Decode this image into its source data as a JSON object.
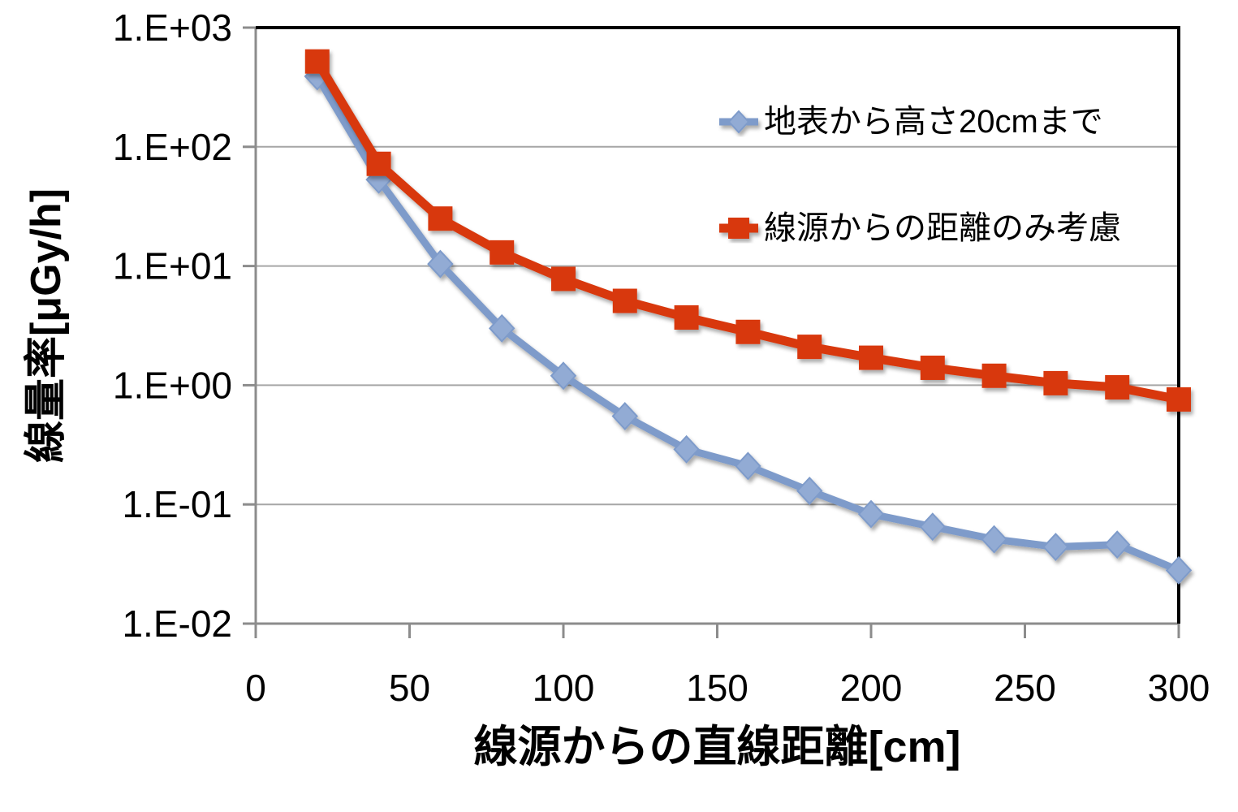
{
  "chart_data": {
    "type": "line",
    "title": "",
    "xlabel": "線源からの直線距離[cm]",
    "ylabel": "線量率[μGy/h]",
    "x_scale": "linear",
    "y_scale": "log",
    "xlim": [
      0,
      300
    ],
    "ylim": [
      0.01,
      1000
    ],
    "x_ticks": [
      0,
      50,
      100,
      150,
      200,
      250,
      300
    ],
    "y_tick_labels": [
      "1.E+03",
      "1.E+02",
      "1.E+01",
      "1.E+00",
      "1.E-01",
      "1.E-02"
    ],
    "grid": "horizontal-major",
    "legend_position": "inside-top-right",
    "x": [
      20,
      40,
      60,
      80,
      100,
      120,
      140,
      160,
      180,
      200,
      220,
      240,
      260,
      280,
      300
    ],
    "series": [
      {
        "name": "地表から高さ20cmまで",
        "marker": "diamond",
        "color": "#7E9BCA",
        "marker_fill": "#92ABD4",
        "line_width": 9,
        "values": [
          390,
          53,
          10.4,
          3.0,
          1.2,
          0.55,
          0.29,
          0.21,
          0.13,
          0.083,
          0.065,
          0.051,
          0.044,
          0.046,
          0.028
        ]
      },
      {
        "name": "線源からの距離のみ考慮",
        "marker": "square",
        "color": "#D8390E",
        "marker_fill": "#D8390E",
        "line_width": 11,
        "values": [
          520,
          72,
          25,
          13,
          7.8,
          5.1,
          3.7,
          2.8,
          2.1,
          1.7,
          1.4,
          1.2,
          1.04,
          0.96,
          0.76
        ]
      }
    ]
  },
  "colors": {
    "background": "#FFFFFF",
    "gridline": "#A6A6A6",
    "axis": "#8C8C8C",
    "border": "#000000",
    "text": "#000000"
  }
}
